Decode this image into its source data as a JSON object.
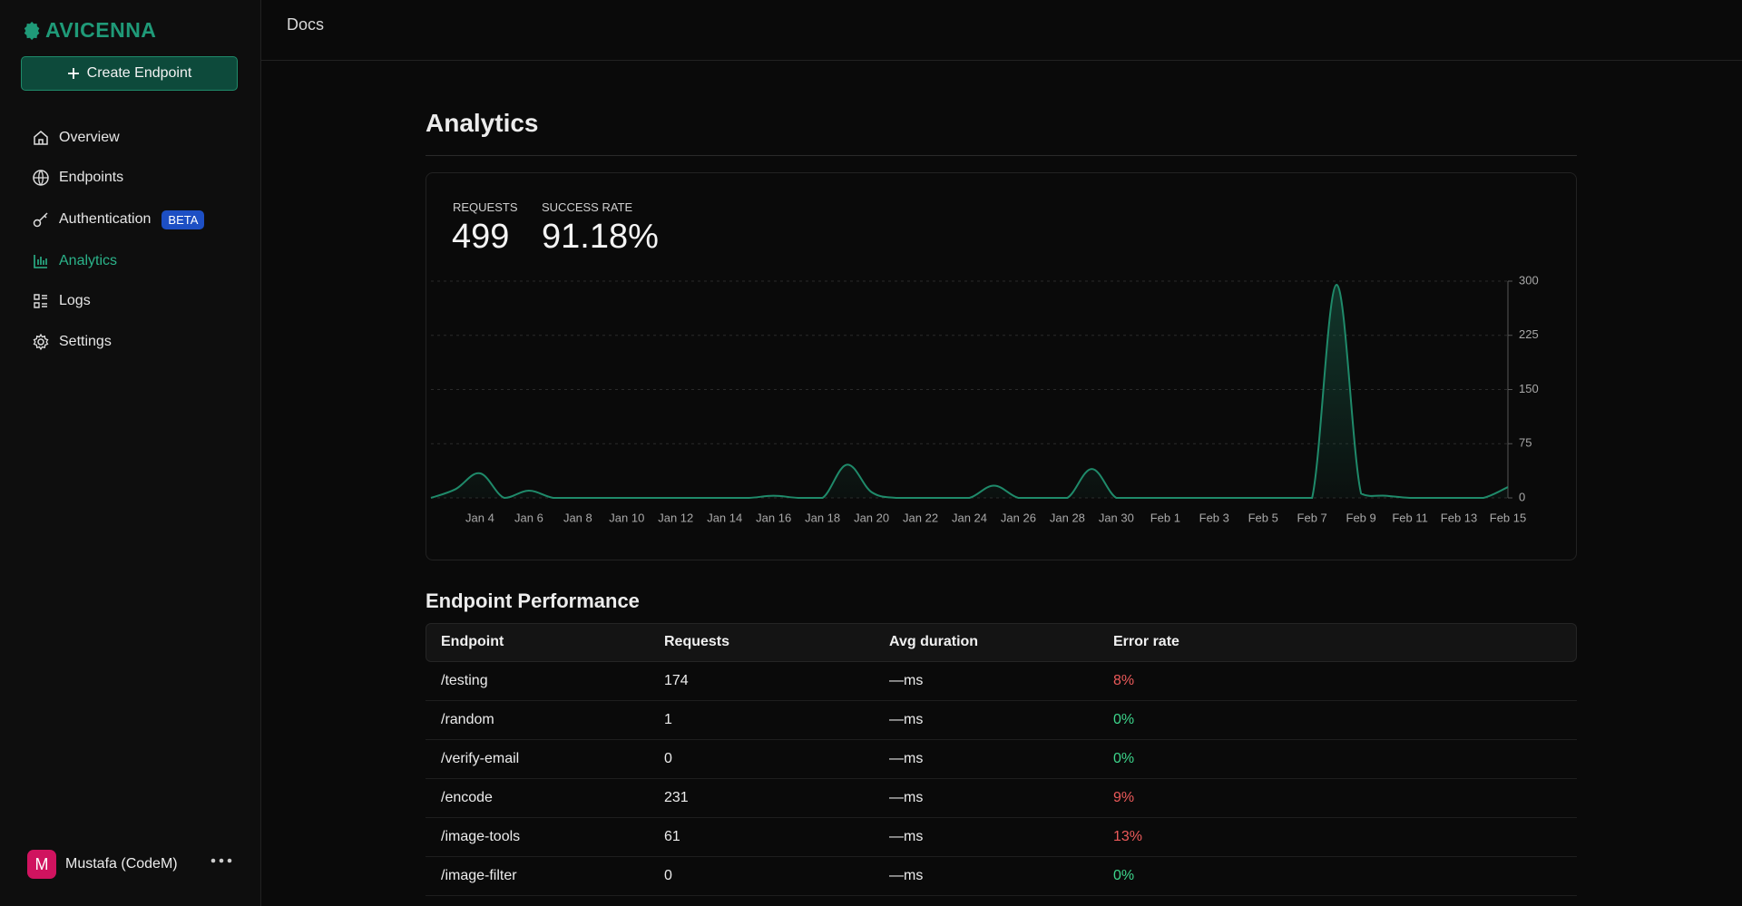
{
  "sidebar": {
    "logo": "AVICENNA",
    "create_button": "Create Endpoint",
    "nav": [
      "Overview",
      "Endpoints",
      "Authentication",
      "Analytics",
      "Logs",
      "Settings"
    ],
    "beta_badge": "BETA",
    "user_initial": "M",
    "user_name": "Mustafa (CodeM)"
  },
  "header": {
    "link": "Docs"
  },
  "page_title": "Analytics",
  "stats": [
    {
      "label": "REQUESTS",
      "value": "499"
    },
    {
      "label": "SUCCESS RATE",
      "value": "91.18%"
    }
  ],
  "chart_data": {
    "type": "area",
    "categories": [
      null,
      null,
      "Jan 4",
      null,
      "Jan 6",
      null,
      "Jan 8",
      null,
      "Jan 10",
      null,
      "Jan 12",
      null,
      "Jan 14",
      null,
      "Jan 16",
      null,
      "Jan 18",
      null,
      "Jan 20",
      null,
      "Jan 22",
      null,
      "Jan 24",
      null,
      "Jan 26",
      null,
      "Jan 28",
      null,
      "Jan 30",
      null,
      "Feb 1",
      null,
      "Feb 3",
      null,
      "Feb 5",
      null,
      "Feb 7",
      null,
      "Feb 9",
      null,
      "Feb 11",
      null,
      "Feb 13",
      null,
      "Feb 15"
    ],
    "values": [
      0,
      12,
      34,
      0,
      10,
      0,
      0,
      0,
      0,
      0,
      0,
      0,
      0,
      0,
      3,
      0,
      0,
      46,
      8,
      0,
      0,
      0,
      0,
      17,
      0,
      0,
      0,
      40,
      0,
      0,
      0,
      0,
      0,
      0,
      0,
      0,
      0,
      295,
      6,
      3,
      0,
      0,
      0,
      0,
      15
    ],
    "color": "#1f8a6a",
    "ylim": [
      0,
      300
    ],
    "yticks": [
      0,
      75,
      150,
      225,
      300
    ],
    "grid": true
  },
  "table": {
    "title": "Endpoint Performance",
    "columns": [
      "Endpoint",
      "Requests",
      "Avg duration",
      "Error rate"
    ],
    "rows": [
      [
        "/testing",
        "174",
        "—ms",
        "8%"
      ],
      [
        "/random",
        "1",
        "—ms",
        "0%"
      ],
      [
        "/verify-email",
        "0",
        "—ms",
        "0%"
      ],
      [
        "/encode",
        "231",
        "—ms",
        "9%"
      ],
      [
        "/image-tools",
        "61",
        "—ms",
        "13%"
      ],
      [
        "/image-filter",
        "0",
        "—ms",
        "0%"
      ]
    ]
  }
}
